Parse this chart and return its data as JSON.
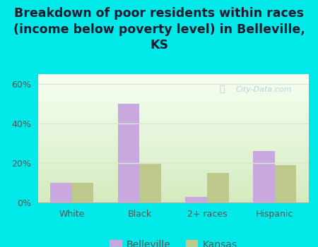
{
  "title": "Breakdown of poor residents within races\n(income below poverty level) in Belleville,\nKS",
  "categories": [
    "White",
    "Black",
    "2+ races",
    "Hispanic"
  ],
  "belleville_values": [
    10,
    50,
    3,
    26
  ],
  "kansas_values": [
    10,
    20,
    15,
    19
  ],
  "belleville_color": "#c9a8e0",
  "kansas_color": "#bdc98a",
  "bg_figure": "#00e8e8",
  "bg_chart_top": "#f4f8ee",
  "bg_chart_bot": "#d4e8c0",
  "ylim": [
    0,
    65
  ],
  "yticks": [
    0,
    20,
    40,
    60
  ],
  "ytick_labels": [
    "0%",
    "20%",
    "40%",
    "60%"
  ],
  "bar_width": 0.32,
  "title_fontsize": 12.5,
  "title_color": "#1a1a2e",
  "tick_color": "#555555",
  "legend_labels": [
    "Belleville",
    "Kansas"
  ],
  "watermark": "City-Data.com",
  "watermark_color": "#aaccd8",
  "grid_color": "#d8e8d0"
}
